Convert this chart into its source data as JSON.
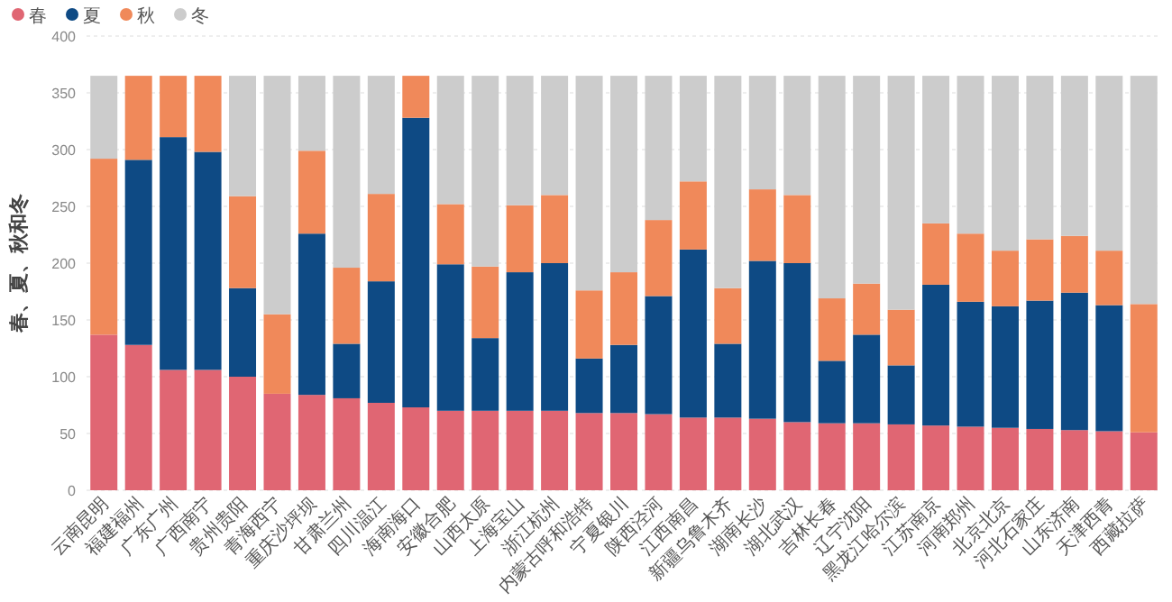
{
  "chart_data": {
    "type": "bar",
    "stacked": true,
    "ylabel": "春、夏、秋和冬",
    "legend": "top left",
    "grid": "y",
    "categories": [
      "云南昆明",
      "福建福州",
      "广东广州",
      "广西南宁",
      "贵州贵阳",
      "青海西宁",
      "重庆沙坪坝",
      "甘肃兰州",
      "四川温江",
      "海南海口",
      "安徽合肥",
      "山西太原",
      "上海宝山",
      "浙江杭州",
      "内蒙古呼和浩特",
      "宁夏银川",
      "陕西泾河",
      "江西南昌",
      "新疆乌鲁木齐",
      "湖南长沙",
      "湖北武汉",
      "吉林长春",
      "辽宁沈阳",
      "黑龙江哈尔滨",
      "江苏南京",
      "河南郑州",
      "北京北京",
      "河北石家庄",
      "山东济南",
      "天津西青",
      "西藏拉萨"
    ],
    "ylim": [
      0,
      400
    ],
    "yticks": [
      0,
      50,
      100,
      150,
      200,
      250,
      300,
      350,
      400
    ],
    "series": [
      {
        "name": "春",
        "color": "#e06673",
        "values": [
          137,
          128,
          106,
          106,
          100,
          85,
          84,
          81,
          77,
          73,
          70,
          70,
          70,
          70,
          68,
          68,
          67,
          64,
          64,
          63,
          60,
          59,
          59,
          58,
          57,
          56,
          55,
          54,
          53,
          52,
          51
        ]
      },
      {
        "name": "夏",
        "color": "#0e4a84",
        "values": [
          0,
          163,
          205,
          192,
          78,
          0,
          142,
          48,
          107,
          255,
          129,
          64,
          122,
          130,
          48,
          60,
          104,
          148,
          65,
          139,
          140,
          55,
          78,
          52,
          124,
          110,
          107,
          113,
          121,
          111,
          0
        ]
      },
      {
        "name": "秋",
        "color": "#f0895a",
        "values": [
          155,
          74,
          54,
          67,
          81,
          70,
          73,
          67,
          77,
          37,
          53,
          63,
          59,
          60,
          60,
          64,
          67,
          60,
          49,
          63,
          60,
          55,
          45,
          49,
          54,
          60,
          49,
          54,
          50,
          48,
          113
        ]
      },
      {
        "name": "冬",
        "color": "#cccccc",
        "values": [
          73,
          0,
          0,
          0,
          106,
          210,
          66,
          169,
          104,
          0,
          113,
          168,
          114,
          105,
          189,
          173,
          127,
          93,
          187,
          100,
          105,
          196,
          183,
          206,
          130,
          139,
          154,
          144,
          141,
          154,
          201
        ]
      }
    ]
  }
}
